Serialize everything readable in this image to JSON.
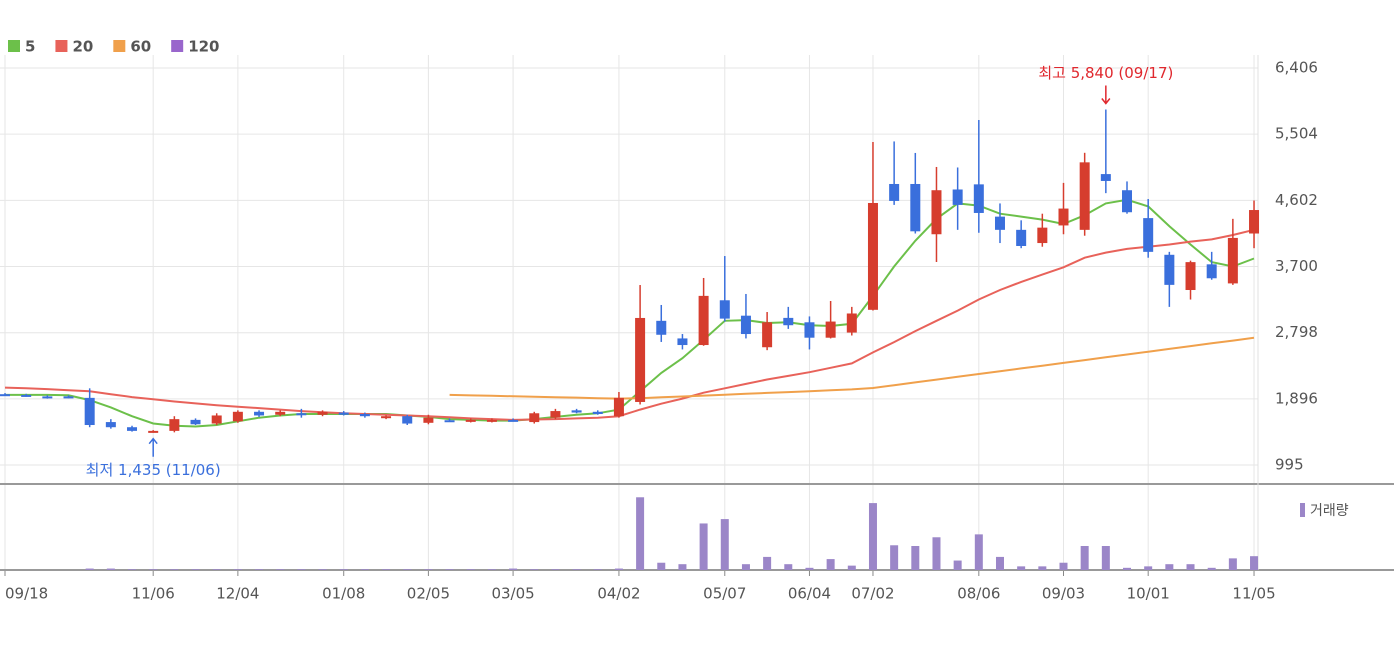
{
  "chart_data": {
    "type": "candlestick",
    "categories": [
      "09/18",
      null,
      null,
      null,
      null,
      null,
      null,
      "11/06",
      null,
      null,
      null,
      "12/04",
      null,
      null,
      null,
      null,
      "01/08",
      null,
      null,
      null,
      "02/05",
      null,
      null,
      null,
      "03/05",
      null,
      null,
      null,
      null,
      "04/02",
      null,
      null,
      null,
      null,
      "05/07",
      null,
      null,
      null,
      "06/04",
      null,
      null,
      "07/02",
      null,
      null,
      null,
      null,
      "08/06",
      null,
      null,
      null,
      "09/03",
      null,
      null,
      null,
      "10/01",
      null,
      null,
      null,
      null,
      "11/05"
    ],
    "open": [
      1960,
      1950,
      1930,
      1930,
      1910,
      1580,
      1510,
      1450,
      1460,
      1610,
      1560,
      1590,
      1720,
      1680,
      1700,
      1680,
      1710,
      1690,
      1640,
      1660,
      1570,
      1605,
      1590,
      1590,
      1610,
      1580,
      1640,
      1740,
      1720,
      1660,
      1854,
      2960,
      2720,
      2630,
      3240,
      3030,
      2600,
      3000,
      2940,
      2730,
      2800,
      3110,
      4825,
      4825,
      4140,
      4750,
      4820,
      4380,
      4200,
      4020,
      4260,
      4200,
      4960,
      4740,
      4360,
      3860,
      3380,
      3730,
      3470,
      4150
    ],
    "high": [
      1975,
      1965,
      1945,
      1945,
      2040,
      1620,
      1530,
      1470,
      1660,
      1630,
      1700,
      1740,
      1740,
      1740,
      1760,
      1740,
      1730,
      1710,
      1670,
      1680,
      1680,
      1630,
      1630,
      1630,
      1630,
      1720,
      1760,
      1760,
      1740,
      1990,
      3448,
      3176,
      2780,
      3544,
      3843,
      3326,
      3080,
      3150,
      3020,
      3230,
      3150,
      5397,
      5405,
      5248,
      5057,
      5050,
      5697,
      4560,
      4330,
      4420,
      4840,
      5250,
      5840,
      4860,
      4620,
      3900,
      3780,
      3900,
      4350,
      4600
    ],
    "low": [
      1940,
      1925,
      1900,
      1905,
      1510,
      1490,
      1450,
      1435,
      1440,
      1540,
      1540,
      1570,
      1650,
      1660,
      1640,
      1660,
      1670,
      1640,
      1620,
      1540,
      1550,
      1590,
      1575,
      1575,
      1590,
      1560,
      1620,
      1700,
      1680,
      1640,
      1820,
      2672,
      2570,
      2620,
      2950,
      2720,
      2560,
      2850,
      2570,
      2720,
      2760,
      3100,
      4540,
      4150,
      3762,
      4200,
      4160,
      4020,
      3950,
      3970,
      4140,
      4120,
      4700,
      4420,
      3820,
      3150,
      3250,
      3520,
      3450,
      3950
    ],
    "close": [
      1950,
      1930,
      1910,
      1915,
      1540,
      1510,
      1460,
      1460,
      1620,
      1550,
      1670,
      1720,
      1670,
      1720,
      1690,
      1720,
      1680,
      1660,
      1660,
      1560,
      1640,
      1595,
      1610,
      1610,
      1600,
      1700,
      1730,
      1710,
      1690,
      1910,
      2999,
      2770,
      2630,
      3300,
      2990,
      2780,
      2940,
      2900,
      2730,
      2950,
      3060,
      4566,
      4594,
      4180,
      4740,
      4540,
      4430,
      4200,
      3980,
      4230,
      4490,
      5120,
      4866,
      4440,
      3900,
      3450,
      3760,
      3540,
      4090,
      4470
    ],
    "up_color": "#d63d2e",
    "down_color": "#3a6fdc",
    "ylim": [
      736,
      6583
    ],
    "yticks": [
      995,
      {
        "value": 1896,
        "label": "1,896"
      },
      {
        "value": 2798,
        "label": "2,798"
      },
      {
        "value": 3700,
        "label": "3,700"
      },
      {
        "value": 4602,
        "label": "4,602"
      },
      {
        "value": 5504,
        "label": "5,504"
      },
      {
        "value": 6406,
        "label": "6,406"
      }
    ],
    "grid": true,
    "moving_averages": [
      {
        "name": "5",
        "color": "#6cc04a",
        "values": [
          1950,
          1950,
          1950,
          1945,
          1880,
          1780,
          1660,
          1560,
          1530,
          1520,
          1540,
          1590,
          1640,
          1670,
          1690,
          1690,
          1690,
          1690,
          1690,
          1670,
          1650,
          1620,
          1610,
          1600,
          1600,
          1620,
          1650,
          1680,
          1700,
          1750,
          2000,
          2250,
          2450,
          2700,
          2960,
          2970,
          2930,
          2940,
          2900,
          2890,
          2920,
          3300,
          3700,
          4050,
          4350,
          4560,
          4530,
          4420,
          4380,
          4340,
          4280,
          4400,
          4560,
          4610,
          4520,
          4250,
          4000,
          3760,
          3700,
          3810
        ]
      },
      {
        "name": "20",
        "color": "#e8625a",
        "values": [
          2050,
          2040,
          2030,
          2015,
          2000,
          1960,
          1920,
          1890,
          1860,
          1835,
          1810,
          1790,
          1770,
          1750,
          1730,
          1715,
          1700,
          1690,
          1680,
          1670,
          1660,
          1645,
          1630,
          1620,
          1610,
          1615,
          1620,
          1630,
          1640,
          1660,
          1750,
          1830,
          1900,
          1980,
          2040,
          2100,
          2160,
          2210,
          2260,
          2320,
          2380,
          2530,
          2670,
          2820,
          2960,
          3100,
          3250,
          3380,
          3490,
          3590,
          3690,
          3820,
          3890,
          3940,
          3970,
          4000,
          4040,
          4070,
          4130,
          4200
        ]
      },
      {
        "name": "60",
        "color": "#f0a04b",
        "values": [
          null,
          null,
          null,
          null,
          null,
          null,
          null,
          null,
          null,
          null,
          null,
          null,
          null,
          null,
          null,
          null,
          null,
          null,
          null,
          null,
          null,
          1950,
          1944,
          1938,
          1931,
          1925,
          1919,
          1913,
          1906,
          1900,
          1905,
          1917,
          1929,
          1941,
          1953,
          1965,
          1977,
          1989,
          2001,
          2013,
          2025,
          2045,
          2083,
          2121,
          2159,
          2197,
          2235,
          2273,
          2311,
          2349,
          2387,
          2425,
          2463,
          2501,
          2539,
          2577,
          2615,
          2653,
          2691,
          2730
        ]
      },
      {
        "name": "120",
        "color": "#9966cc",
        "values": [
          null,
          null,
          null,
          null,
          null,
          null,
          null,
          null,
          null,
          null,
          null,
          null,
          null,
          null,
          null,
          null,
          null,
          null,
          null,
          null,
          null,
          null,
          null,
          null,
          null,
          null,
          null,
          null,
          null,
          null,
          null,
          null,
          null,
          null,
          null,
          null,
          null,
          null,
          null,
          null,
          null,
          null,
          null,
          null,
          null,
          null,
          null,
          null,
          null,
          null,
          null,
          null,
          null,
          null,
          null,
          null,
          null,
          null,
          null,
          null
        ]
      }
    ],
    "volume_label": "거래량",
    "volume_color": "#9b86c8",
    "volume_ylim": [
      0,
      110
    ],
    "volume": [
      0,
      0,
      0,
      0,
      2,
      2,
      1,
      1,
      1,
      1,
      1,
      1,
      1,
      1,
      1,
      1,
      1,
      1,
      1,
      1,
      1,
      1,
      1,
      1,
      2,
      1,
      1,
      1,
      1,
      2,
      100,
      10,
      8,
      64,
      70,
      8,
      18,
      8,
      3,
      15,
      6,
      92,
      34,
      33,
      45,
      13,
      49,
      18,
      5,
      5,
      10,
      33,
      33,
      3,
      5,
      8,
      8,
      3,
      16,
      19
    ],
    "annotations": [
      {
        "text": "최저 1,435 (11/06)",
        "index": 7,
        "color": "#3a6fdc",
        "position": "below"
      },
      {
        "text": "최고 5,840 (09/17)",
        "index": 52,
        "color": "#e0282e",
        "position": "above"
      }
    ]
  }
}
